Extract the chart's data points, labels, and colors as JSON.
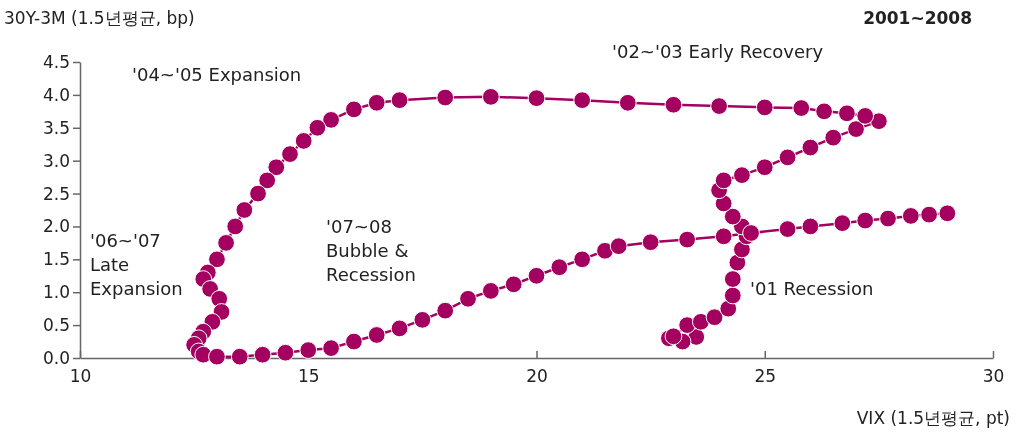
{
  "chart_data": {
    "type": "line",
    "title": "2001~2008",
    "xlabel": "VIX (1.5년평균, pt)",
    "ylabel": "30Y-3M (1.5년평균, bp)",
    "annotations": [
      "'04~'05 Expansion",
      "'02~'03 Early Recovery",
      "'06~'07\nLate\nExpansion",
      "'07~08\nBubble &\nRecession",
      "'01 Recession"
    ],
    "xlim": [
      10,
      30
    ],
    "xticks": [
      10,
      15,
      20,
      25,
      30
    ],
    "ylim": [
      0,
      4.5
    ],
    "yticks": [
      {
        "value": 0,
        "label": "0.0"
      },
      0.5,
      {
        "value": 1,
        "label": "1.0"
      },
      1.5,
      {
        "value": 2,
        "label": "2.0"
      },
      2.5,
      {
        "value": 3,
        "label": "3.0"
      },
      3.5,
      {
        "value": 4,
        "label": "4.0"
      },
      4.5
    ],
    "marker": "circle",
    "line_style": "solid",
    "series": [
      {
        "color": "#a3005f",
        "x": [
          23.5,
          23.2,
          22.9,
          23.0,
          23.3,
          23.6,
          23.9,
          24.2,
          24.3,
          24.3,
          24.4,
          24.5,
          24.6,
          24.5,
          24.3,
          24.1,
          24.0,
          24.1,
          24.5,
          25.0,
          25.5,
          26.0,
          26.5,
          27.0,
          27.5,
          27.2,
          26.8,
          26.3,
          25.8,
          25.0,
          24.0,
          23.0,
          22.0,
          21.0,
          20.0,
          19.0,
          18.0,
          17.0,
          16.5,
          16.0,
          15.5,
          15.2,
          14.9,
          14.6,
          14.3,
          14.1,
          13.9,
          13.6,
          13.4,
          13.2,
          13.0,
          12.8,
          12.7,
          12.85,
          13.05,
          13.1,
          12.9,
          12.7,
          12.6,
          12.5,
          12.6,
          12.7,
          13.0,
          13.5,
          14.0,
          14.5,
          15.0,
          15.5,
          16.0,
          16.5,
          17.0,
          17.5,
          18.0,
          18.5,
          19.0,
          19.5,
          20.0,
          20.5,
          21.0,
          21.5,
          21.8,
          22.5,
          23.3,
          24.1,
          24.7,
          25.5,
          26.0,
          26.7,
          27.2,
          27.7,
          28.2,
          28.6,
          29.0
        ],
        "values": [
          0.32,
          0.25,
          0.3,
          0.33,
          0.5,
          0.55,
          0.62,
          0.75,
          0.95,
          1.2,
          1.45,
          1.65,
          1.85,
          2.0,
          2.15,
          2.35,
          2.55,
          2.7,
          2.78,
          2.9,
          3.05,
          3.2,
          3.35,
          3.48,
          3.6,
          3.68,
          3.72,
          3.75,
          3.8,
          3.81,
          3.83,
          3.85,
          3.88,
          3.92,
          3.95,
          3.97,
          3.96,
          3.92,
          3.88,
          3.78,
          3.62,
          3.5,
          3.3,
          3.1,
          2.9,
          2.7,
          2.5,
          2.25,
          2.0,
          1.75,
          1.5,
          1.3,
          1.2,
          1.05,
          0.9,
          0.7,
          0.55,
          0.4,
          0.3,
          0.2,
          0.1,
          0.05,
          0.02,
          0.02,
          0.05,
          0.08,
          0.12,
          0.15,
          0.25,
          0.35,
          0.45,
          0.58,
          0.72,
          0.9,
          1.02,
          1.12,
          1.25,
          1.38,
          1.5,
          1.63,
          1.7,
          1.76,
          1.8,
          1.85,
          1.9,
          1.96,
          2.0,
          2.05,
          2.09,
          2.12,
          2.16,
          2.18,
          2.2
        ]
      }
    ]
  }
}
